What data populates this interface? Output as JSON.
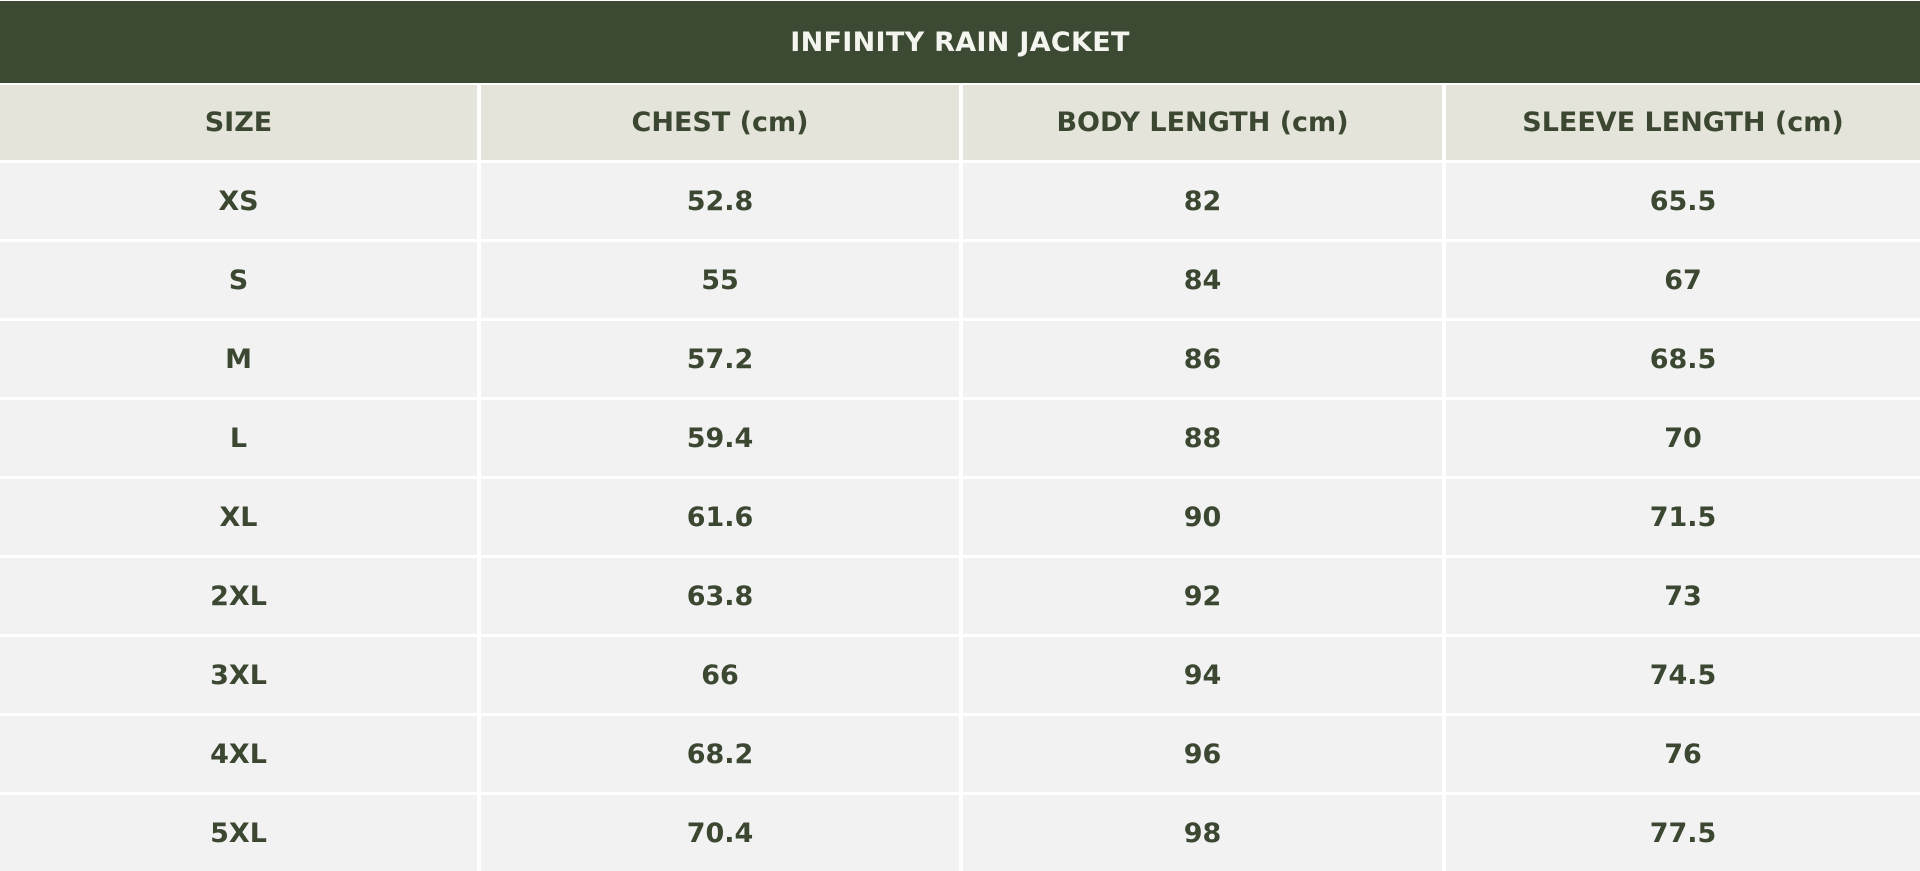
{
  "title": "INFINITY RAIN JACKET",
  "colors": {
    "title_bg": "#3d4a33",
    "title_text": "#f4f5ef",
    "header_bg": "#e4e4da",
    "row_bg": "#f2f2f2",
    "text": "#3b4731",
    "divider": "#ffffff"
  },
  "table": {
    "headers": [
      "SIZE",
      "CHEST (cm)",
      "BODY LENGTH (cm)",
      "SLEEVE LENGTH (cm)"
    ],
    "rows": [
      [
        "XS",
        "52.8",
        "82",
        "65.5"
      ],
      [
        "S",
        "55",
        "84",
        "67"
      ],
      [
        "M",
        "57.2",
        "86",
        "68.5"
      ],
      [
        "L",
        "59.4",
        "88",
        "70"
      ],
      [
        "XL",
        "61.6",
        "90",
        "71.5"
      ],
      [
        "2XL",
        "63.8",
        "92",
        "73"
      ],
      [
        "3XL",
        "66",
        "94",
        "74.5"
      ],
      [
        "4XL",
        "68.2",
        "96",
        "76"
      ],
      [
        "5XL",
        "70.4",
        "98",
        "77.5"
      ]
    ]
  }
}
